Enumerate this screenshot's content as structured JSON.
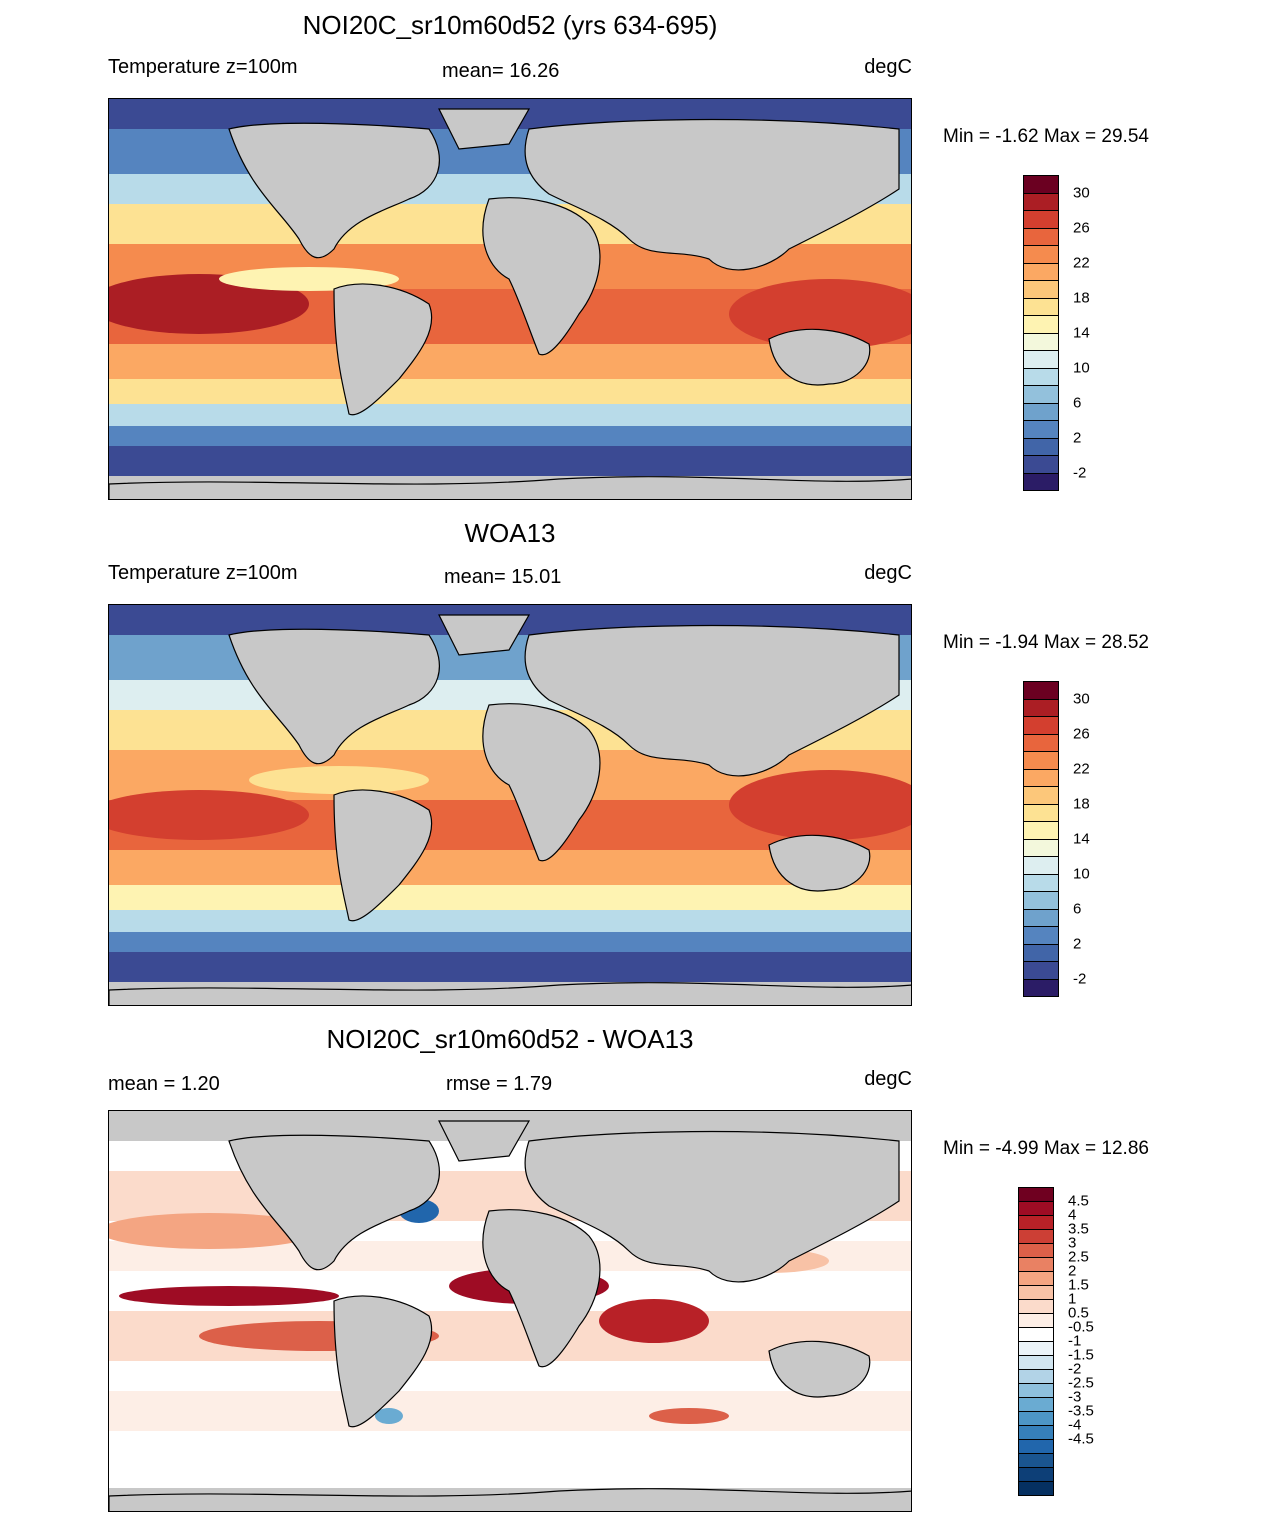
{
  "panels": [
    {
      "title": "NOI20C_sr10m60d52 (yrs 634-695)",
      "left_label": "Temperature z=100m",
      "center_label": "mean=  16.26",
      "right_label": "degC",
      "minmax": "Min =  -1.62 Max =  29.54",
      "colorbar": {
        "colors": [
          "#2b1c66",
          "#3b4a93",
          "#4165a8",
          "#5584bf",
          "#6fa2cc",
          "#93c1dc",
          "#b8dbe9",
          "#ddeef0",
          "#f3f8dc",
          "#fef3b2",
          "#fde293",
          "#fcc77a",
          "#fba863",
          "#f58b4e",
          "#e8653d",
          "#d33f2f",
          "#ab1e24",
          "#6b0021"
        ],
        "tick_labels": [
          "30",
          "26",
          "22",
          "18",
          "14",
          "10",
          "6",
          "2",
          "-2"
        ]
      }
    },
    {
      "title": "WOA13",
      "left_label": "Temperature z=100m",
      "center_label": "mean=  15.01",
      "right_label": "degC",
      "minmax": "Min =  -1.94 Max =  28.52",
      "colorbar": {
        "colors": [
          "#2b1c66",
          "#3b4a93",
          "#4165a8",
          "#5584bf",
          "#6fa2cc",
          "#93c1dc",
          "#b8dbe9",
          "#ddeef0",
          "#f3f8dc",
          "#fef3b2",
          "#fde293",
          "#fcc77a",
          "#fba863",
          "#f58b4e",
          "#e8653d",
          "#d33f2f",
          "#ab1e24",
          "#6b0021"
        ],
        "tick_labels": [
          "30",
          "26",
          "22",
          "18",
          "14",
          "10",
          "6",
          "2",
          "-2"
        ]
      }
    },
    {
      "title": "NOI20C_sr10m60d52 - WOA13",
      "left_label": "mean =   1.20",
      "center_label": "rmse =   1.79",
      "right_label": "degC",
      "minmax": "Min =  -4.99 Max =  12.86",
      "colorbar": {
        "colors": [
          "#053061",
          "#0d3f77",
          "#1a5590",
          "#2166ac",
          "#3680ba",
          "#4d96c6",
          "#6aabd2",
          "#8ec0dd",
          "#b2d3e7",
          "#d1e5f0",
          "#ebf3f8",
          "#ffffff",
          "#fdeee6",
          "#fbdbcb",
          "#f8c2a6",
          "#f4a582",
          "#e98163",
          "#dc6049",
          "#cc3f35",
          "#b82127",
          "#9e0c24",
          "#6f0020"
        ],
        "tick_labels": [
          "4.5",
          "4",
          "3.5",
          "3",
          "2.5",
          "2",
          "1.5",
          "1",
          "0.5",
          "-0.5",
          "-1",
          "-1.5",
          "-2",
          "-2.5",
          "-3",
          "-3.5",
          "-4",
          "-4.5"
        ]
      }
    }
  ],
  "chart_data": [
    {
      "type": "heatmap",
      "title": "NOI20C_sr10m60d52 (yrs 634-695)",
      "variable": "Temperature z=100m",
      "units": "degC",
      "mean": 16.26,
      "min": -1.62,
      "max": 29.54,
      "contour_levels": [
        -2,
        0,
        2,
        4,
        6,
        8,
        10,
        12,
        14,
        16,
        18,
        20,
        22,
        24,
        26,
        28,
        30
      ]
    },
    {
      "type": "heatmap",
      "title": "WOA13",
      "variable": "Temperature z=100m",
      "units": "degC",
      "mean": 15.01,
      "min": -1.94,
      "max": 28.52,
      "contour_levels": [
        -2,
        0,
        2,
        4,
        6,
        8,
        10,
        12,
        14,
        16,
        18,
        20,
        22,
        24,
        26,
        28,
        30
      ]
    },
    {
      "type": "heatmap",
      "title": "NOI20C_sr10m60d52 - WOA13",
      "units": "degC",
      "mean": 1.2,
      "rmse": 1.79,
      "min": -4.99,
      "max": 12.86,
      "contour_levels": [
        -4.5,
        -4,
        -3.5,
        -3,
        -2.5,
        -2,
        -1.5,
        -1,
        -0.5,
        0.5,
        1,
        1.5,
        2,
        2.5,
        3,
        3.5,
        4,
        4.5
      ]
    }
  ]
}
